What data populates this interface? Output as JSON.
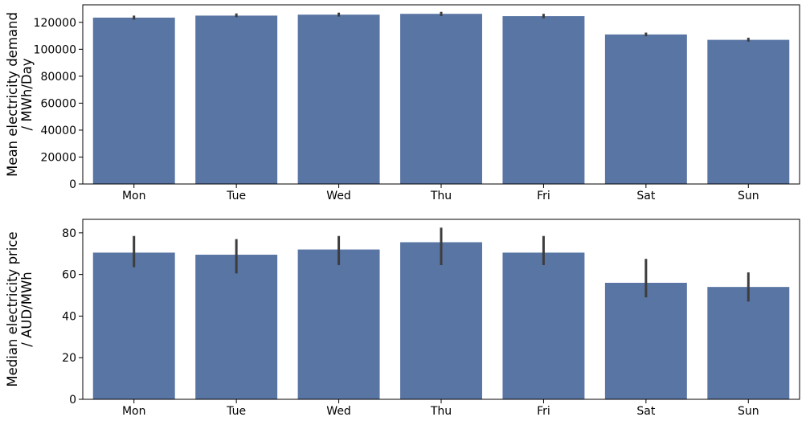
{
  "colors": {
    "bar": "#5975a4",
    "error_bar": "#3d3d3d",
    "axis": "#000000",
    "background": "#ffffff"
  },
  "chart_data": [
    {
      "type": "bar",
      "title": "",
      "categories": [
        "Mon",
        "Tue",
        "Wed",
        "Thu",
        "Fri",
        "Sat",
        "Sun"
      ],
      "values": [
        123500,
        125000,
        125700,
        126300,
        124600,
        111000,
        107000
      ],
      "error_low": [
        122000,
        123800,
        124300,
        124700,
        123000,
        109700,
        105700
      ],
      "error_high": [
        125000,
        126600,
        127200,
        127800,
        126300,
        112400,
        108600
      ],
      "ylabel_lines": [
        "Mean electricity demand",
        "/ MWh/Day"
      ],
      "ylim": [
        0,
        133000
      ],
      "yticks": [
        0,
        20000,
        40000,
        60000,
        80000,
        100000,
        120000
      ],
      "grid": false,
      "legend": "none"
    },
    {
      "type": "bar",
      "title": "",
      "categories": [
        "Mon",
        "Tue",
        "Wed",
        "Thu",
        "Fri",
        "Sat",
        "Sun"
      ],
      "values": [
        70.5,
        69.5,
        72.0,
        75.5,
        70.5,
        56.0,
        54.0
      ],
      "error_low": [
        63.5,
        60.5,
        64.5,
        64.5,
        64.5,
        49.0,
        47.0
      ],
      "error_high": [
        78.5,
        77.0,
        78.5,
        82.5,
        78.5,
        67.5,
        61.0
      ],
      "ylabel_lines": [
        "Median electricity price",
        "/ AUD/MWh"
      ],
      "ylim": [
        0,
        86.5
      ],
      "yticks": [
        0,
        20,
        40,
        60,
        80
      ],
      "grid": false,
      "legend": "none"
    }
  ]
}
